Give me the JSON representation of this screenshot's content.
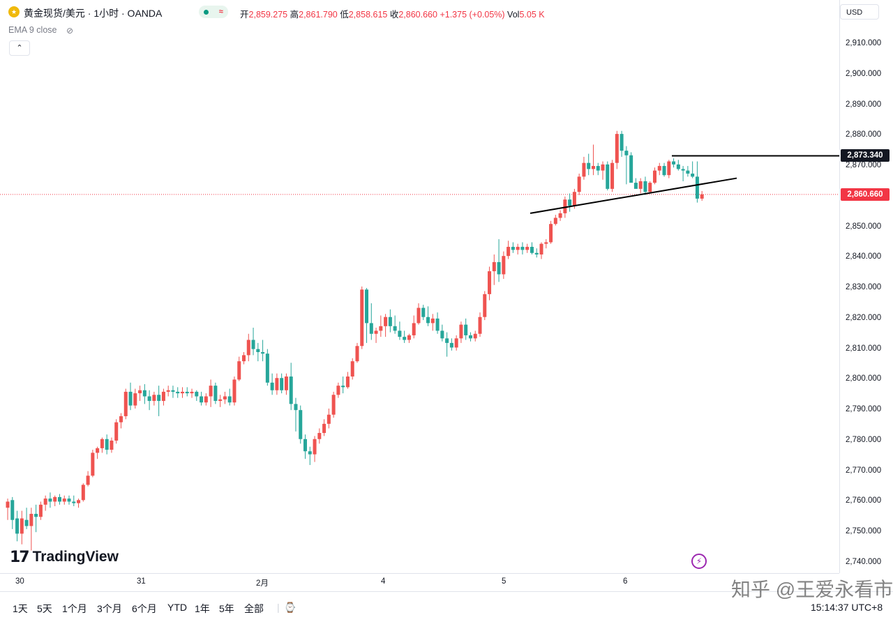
{
  "header": {
    "symbol_icon": "gold-coin-icon",
    "title": "黄金现货/美元 · 1小时 · OANDA",
    "ohlc": {
      "open_label": "开",
      "open": "2,859.275",
      "high_label": "高",
      "high": "2,861.790",
      "low_label": "低",
      "low": "2,858.615",
      "close_label": "收",
      "close": "2,860.660",
      "change": "+1.375 (+0.05%)",
      "vol_label": "Vol",
      "vol": "5.05 K"
    },
    "indicator": "EMA 9 close"
  },
  "price_axis": {
    "currency": "USD",
    "ticks": [
      "2,910.000",
      "2,900.000",
      "2,890.000",
      "2,880.000",
      "2,870.000",
      "2,860.000",
      "2,850.000",
      "2,840.000",
      "2,830.000",
      "2,820.000",
      "2,810.000",
      "2,800.000",
      "2,790.000",
      "2,780.000",
      "2,770.000",
      "2,760.000",
      "2,750.000",
      "2,740.000"
    ],
    "line_tag": "2,873.340",
    "last_price_tag": "2,860.660"
  },
  "time_axis": {
    "labels": [
      "30",
      "31",
      "2月",
      "4",
      "5",
      "6"
    ]
  },
  "ranges": [
    "1天",
    "5天",
    "1个月",
    "3个月",
    "6个月",
    "YTD",
    "1年",
    "5年",
    "全部"
  ],
  "clock": "15:14:37 UTC+8",
  "branding": {
    "logo": "TradingView",
    "watermark": "知乎 @王爱永看市"
  },
  "colors": {
    "up": "#ef5350",
    "down": "#26a69a",
    "last_price": "#f23645"
  },
  "chart_data": {
    "type": "candlestick",
    "timeframe": "1小时",
    "ylim": [
      2738,
      2918
    ],
    "grid": false,
    "candles": [
      {
        "o": 2758.0,
        "h": 2761.0,
        "l": 2754.0,
        "c": 2760.0
      },
      {
        "o": 2760.5,
        "h": 2761.5,
        "l": 2751.0,
        "c": 2754.0
      },
      {
        "o": 2754.5,
        "h": 2757.0,
        "l": 2747.0,
        "c": 2749.5
      },
      {
        "o": 2749.5,
        "h": 2757.0,
        "l": 2746.0,
        "c": 2754.5
      },
      {
        "o": 2754.0,
        "h": 2758.0,
        "l": 2751.0,
        "c": 2752.0
      },
      {
        "o": 2752.0,
        "h": 2758.0,
        "l": 2744.0,
        "c": 2756.0
      },
      {
        "o": 2756.0,
        "h": 2759.0,
        "l": 2750.0,
        "c": 2755.0
      },
      {
        "o": 2755.0,
        "h": 2760.0,
        "l": 2754.0,
        "c": 2759.0
      },
      {
        "o": 2759.0,
        "h": 2762.0,
        "l": 2757.0,
        "c": 2761.0
      },
      {
        "o": 2761.0,
        "h": 2763.0,
        "l": 2758.0,
        "c": 2760.0
      },
      {
        "o": 2760.0,
        "h": 2762.0,
        "l": 2758.5,
        "c": 2761.5
      },
      {
        "o": 2761.5,
        "h": 2762.5,
        "l": 2759.0,
        "c": 2760.0
      },
      {
        "o": 2760.0,
        "h": 2762.0,
        "l": 2759.0,
        "c": 2761.0
      },
      {
        "o": 2761.0,
        "h": 2762.0,
        "l": 2759.0,
        "c": 2760.0
      },
      {
        "o": 2760.0,
        "h": 2762.0,
        "l": 2758.5,
        "c": 2759.5
      },
      {
        "o": 2759.5,
        "h": 2761.0,
        "l": 2758.0,
        "c": 2760.5
      },
      {
        "o": 2760.5,
        "h": 2766.0,
        "l": 2760.0,
        "c": 2765.5
      },
      {
        "o": 2765.5,
        "h": 2770.0,
        "l": 2765.0,
        "c": 2768.5
      },
      {
        "o": 2768.5,
        "h": 2777.0,
        "l": 2768.0,
        "c": 2776.0
      },
      {
        "o": 2776.0,
        "h": 2778.0,
        "l": 2774.0,
        "c": 2777.5
      },
      {
        "o": 2777.5,
        "h": 2781.0,
        "l": 2776.0,
        "c": 2780.5
      },
      {
        "o": 2780.5,
        "h": 2782.0,
        "l": 2775.5,
        "c": 2777.0
      },
      {
        "o": 2777.0,
        "h": 2781.0,
        "l": 2776.0,
        "c": 2780.0
      },
      {
        "o": 2780.0,
        "h": 2787.0,
        "l": 2779.0,
        "c": 2786.0
      },
      {
        "o": 2786.0,
        "h": 2789.0,
        "l": 2784.0,
        "c": 2788.0
      },
      {
        "o": 2788.0,
        "h": 2797.0,
        "l": 2787.0,
        "c": 2796.0
      },
      {
        "o": 2796.0,
        "h": 2799.0,
        "l": 2790.0,
        "c": 2791.5
      },
      {
        "o": 2791.5,
        "h": 2797.0,
        "l": 2790.5,
        "c": 2795.5
      },
      {
        "o": 2795.5,
        "h": 2798.0,
        "l": 2793.0,
        "c": 2796.5
      },
      {
        "o": 2796.5,
        "h": 2798.5,
        "l": 2792.0,
        "c": 2794.5
      },
      {
        "o": 2794.5,
        "h": 2796.5,
        "l": 2790.0,
        "c": 2793.0
      },
      {
        "o": 2793.0,
        "h": 2796.0,
        "l": 2791.5,
        "c": 2795.0
      },
      {
        "o": 2795.0,
        "h": 2798.0,
        "l": 2788.0,
        "c": 2793.0
      },
      {
        "o": 2793.0,
        "h": 2797.0,
        "l": 2791.5,
        "c": 2796.0
      },
      {
        "o": 2796.0,
        "h": 2798.0,
        "l": 2794.5,
        "c": 2796.5
      },
      {
        "o": 2796.5,
        "h": 2798.0,
        "l": 2794.0,
        "c": 2796.0
      },
      {
        "o": 2796.0,
        "h": 2797.5,
        "l": 2794.0,
        "c": 2795.5
      },
      {
        "o": 2795.5,
        "h": 2797.5,
        "l": 2794.0,
        "c": 2796.0
      },
      {
        "o": 2796.0,
        "h": 2797.5,
        "l": 2794.5,
        "c": 2795.5
      },
      {
        "o": 2795.5,
        "h": 2797.0,
        "l": 2794.0,
        "c": 2796.0
      },
      {
        "o": 2796.0,
        "h": 2796.5,
        "l": 2793.0,
        "c": 2794.5
      },
      {
        "o": 2794.5,
        "h": 2796.0,
        "l": 2791.5,
        "c": 2792.5
      },
      {
        "o": 2792.5,
        "h": 2795.5,
        "l": 2791.5,
        "c": 2794.5
      },
      {
        "o": 2794.5,
        "h": 2800.0,
        "l": 2791.0,
        "c": 2798.0
      },
      {
        "o": 2798.0,
        "h": 2799.0,
        "l": 2792.0,
        "c": 2793.0
      },
      {
        "o": 2793.0,
        "h": 2795.0,
        "l": 2791.0,
        "c": 2793.5
      },
      {
        "o": 2793.5,
        "h": 2796.0,
        "l": 2792.0,
        "c": 2794.5
      },
      {
        "o": 2794.5,
        "h": 2797.0,
        "l": 2791.5,
        "c": 2792.5
      },
      {
        "o": 2792.5,
        "h": 2801.0,
        "l": 2791.5,
        "c": 2800.0
      },
      {
        "o": 2800.0,
        "h": 2807.5,
        "l": 2799.5,
        "c": 2806.0
      },
      {
        "o": 2806.0,
        "h": 2809.0,
        "l": 2805.0,
        "c": 2808.0
      },
      {
        "o": 2808.0,
        "h": 2815.0,
        "l": 2806.0,
        "c": 2813.0
      },
      {
        "o": 2813.0,
        "h": 2817.0,
        "l": 2808.0,
        "c": 2810.0
      },
      {
        "o": 2810.0,
        "h": 2812.0,
        "l": 2806.0,
        "c": 2809.0
      },
      {
        "o": 2809.0,
        "h": 2813.0,
        "l": 2806.0,
        "c": 2808.5
      },
      {
        "o": 2808.5,
        "h": 2810.0,
        "l": 2798.0,
        "c": 2799.0
      },
      {
        "o": 2799.0,
        "h": 2802.0,
        "l": 2795.0,
        "c": 2796.5
      },
      {
        "o": 2796.5,
        "h": 2802.0,
        "l": 2795.0,
        "c": 2800.5
      },
      {
        "o": 2800.5,
        "h": 2802.0,
        "l": 2795.5,
        "c": 2796.5
      },
      {
        "o": 2796.5,
        "h": 2802.0,
        "l": 2795.0,
        "c": 2801.0
      },
      {
        "o": 2801.0,
        "h": 2805.5,
        "l": 2790.0,
        "c": 2792.0
      },
      {
        "o": 2792.0,
        "h": 2794.0,
        "l": 2783.0,
        "c": 2790.0
      },
      {
        "o": 2790.0,
        "h": 2791.5,
        "l": 2779.0,
        "c": 2780.5
      },
      {
        "o": 2780.5,
        "h": 2782.0,
        "l": 2774.0,
        "c": 2776.5
      },
      {
        "o": 2776.5,
        "h": 2778.0,
        "l": 2772.0,
        "c": 2775.5
      },
      {
        "o": 2775.5,
        "h": 2781.5,
        "l": 2773.0,
        "c": 2780.5
      },
      {
        "o": 2780.5,
        "h": 2784.0,
        "l": 2779.0,
        "c": 2782.5
      },
      {
        "o": 2782.5,
        "h": 2787.0,
        "l": 2781.5,
        "c": 2785.5
      },
      {
        "o": 2785.5,
        "h": 2790.5,
        "l": 2784.0,
        "c": 2788.5
      },
      {
        "o": 2788.5,
        "h": 2796.0,
        "l": 2787.5,
        "c": 2795.0
      },
      {
        "o": 2795.0,
        "h": 2799.0,
        "l": 2794.0,
        "c": 2798.0
      },
      {
        "o": 2798.0,
        "h": 2801.0,
        "l": 2795.5,
        "c": 2797.5
      },
      {
        "o": 2797.5,
        "h": 2802.5,
        "l": 2797.0,
        "c": 2801.0
      },
      {
        "o": 2801.0,
        "h": 2807.0,
        "l": 2800.0,
        "c": 2806.0
      },
      {
        "o": 2806.0,
        "h": 2812.0,
        "l": 2805.5,
        "c": 2811.0
      },
      {
        "o": 2811.0,
        "h": 2830.5,
        "l": 2810.0,
        "c": 2829.5
      },
      {
        "o": 2829.5,
        "h": 2830.0,
        "l": 2812.0,
        "c": 2818.5
      },
      {
        "o": 2818.5,
        "h": 2825.0,
        "l": 2813.0,
        "c": 2815.0
      },
      {
        "o": 2815.0,
        "h": 2817.0,
        "l": 2812.0,
        "c": 2816.0
      },
      {
        "o": 2816.0,
        "h": 2821.0,
        "l": 2814.0,
        "c": 2817.5
      },
      {
        "o": 2817.5,
        "h": 2821.5,
        "l": 2814.0,
        "c": 2820.5
      },
      {
        "o": 2820.5,
        "h": 2823.0,
        "l": 2815.5,
        "c": 2817.5
      },
      {
        "o": 2817.5,
        "h": 2821.0,
        "l": 2815.0,
        "c": 2816.0
      },
      {
        "o": 2816.0,
        "h": 2819.0,
        "l": 2813.0,
        "c": 2814.0
      },
      {
        "o": 2814.0,
        "h": 2816.0,
        "l": 2812.0,
        "c": 2813.0
      },
      {
        "o": 2813.0,
        "h": 2815.0,
        "l": 2812.0,
        "c": 2814.5
      },
      {
        "o": 2814.5,
        "h": 2821.0,
        "l": 2813.5,
        "c": 2818.5
      },
      {
        "o": 2818.5,
        "h": 2825.0,
        "l": 2818.0,
        "c": 2823.5
      },
      {
        "o": 2823.5,
        "h": 2824.5,
        "l": 2819.5,
        "c": 2820.5
      },
      {
        "o": 2820.5,
        "h": 2824.0,
        "l": 2817.5,
        "c": 2818.5
      },
      {
        "o": 2818.5,
        "h": 2821.5,
        "l": 2816.0,
        "c": 2820.0
      },
      {
        "o": 2820.0,
        "h": 2822.0,
        "l": 2815.0,
        "c": 2816.0
      },
      {
        "o": 2816.0,
        "h": 2818.0,
        "l": 2812.5,
        "c": 2813.5
      },
      {
        "o": 2813.5,
        "h": 2815.5,
        "l": 2807.5,
        "c": 2812.0
      },
      {
        "o": 2812.0,
        "h": 2813.5,
        "l": 2809.5,
        "c": 2810.5
      },
      {
        "o": 2810.5,
        "h": 2814.5,
        "l": 2809.5,
        "c": 2813.5
      },
      {
        "o": 2813.5,
        "h": 2819.0,
        "l": 2812.0,
        "c": 2818.0
      },
      {
        "o": 2818.0,
        "h": 2820.0,
        "l": 2813.0,
        "c": 2814.5
      },
      {
        "o": 2814.5,
        "h": 2815.5,
        "l": 2812.5,
        "c": 2813.5
      },
      {
        "o": 2813.5,
        "h": 2816.0,
        "l": 2812.5,
        "c": 2815.0
      },
      {
        "o": 2815.0,
        "h": 2822.0,
        "l": 2814.0,
        "c": 2820.5
      },
      {
        "o": 2820.5,
        "h": 2829.0,
        "l": 2819.5,
        "c": 2828.0
      },
      {
        "o": 2828.0,
        "h": 2837.0,
        "l": 2826.0,
        "c": 2835.5
      },
      {
        "o": 2835.5,
        "h": 2841.0,
        "l": 2831.0,
        "c": 2838.5
      },
      {
        "o": 2838.5,
        "h": 2846.0,
        "l": 2832.0,
        "c": 2834.5
      },
      {
        "o": 2834.5,
        "h": 2842.0,
        "l": 2833.0,
        "c": 2840.5
      },
      {
        "o": 2840.5,
        "h": 2845.5,
        "l": 2839.5,
        "c": 2843.5
      },
      {
        "o": 2843.5,
        "h": 2845.0,
        "l": 2841.5,
        "c": 2842.5
      },
      {
        "o": 2842.5,
        "h": 2844.5,
        "l": 2841.0,
        "c": 2843.5
      },
      {
        "o": 2843.5,
        "h": 2845.0,
        "l": 2841.0,
        "c": 2842.5
      },
      {
        "o": 2842.5,
        "h": 2844.5,
        "l": 2841.5,
        "c": 2843.5
      },
      {
        "o": 2843.5,
        "h": 2845.0,
        "l": 2841.0,
        "c": 2841.5
      },
      {
        "o": 2841.5,
        "h": 2843.0,
        "l": 2840.0,
        "c": 2841.0
      },
      {
        "o": 2841.0,
        "h": 2845.0,
        "l": 2839.5,
        "c": 2844.5
      },
      {
        "o": 2844.5,
        "h": 2846.0,
        "l": 2843.0,
        "c": 2845.0
      },
      {
        "o": 2845.0,
        "h": 2852.0,
        "l": 2844.5,
        "c": 2851.0
      },
      {
        "o": 2851.0,
        "h": 2854.0,
        "l": 2850.5,
        "c": 2853.0
      },
      {
        "o": 2853.0,
        "h": 2855.5,
        "l": 2852.0,
        "c": 2854.5
      },
      {
        "o": 2854.5,
        "h": 2860.0,
        "l": 2853.0,
        "c": 2859.0
      },
      {
        "o": 2859.0,
        "h": 2861.0,
        "l": 2855.0,
        "c": 2857.0
      },
      {
        "o": 2857.0,
        "h": 2862.5,
        "l": 2856.0,
        "c": 2861.5
      },
      {
        "o": 2861.5,
        "h": 2867.5,
        "l": 2860.5,
        "c": 2866.5
      },
      {
        "o": 2866.5,
        "h": 2873.0,
        "l": 2865.5,
        "c": 2871.0
      },
      {
        "o": 2871.0,
        "h": 2874.0,
        "l": 2867.0,
        "c": 2869.0
      },
      {
        "o": 2869.0,
        "h": 2877.0,
        "l": 2867.0,
        "c": 2870.0
      },
      {
        "o": 2870.0,
        "h": 2871.0,
        "l": 2867.0,
        "c": 2868.5
      },
      {
        "o": 2868.5,
        "h": 2871.5,
        "l": 2865.5,
        "c": 2870.5
      },
      {
        "o": 2870.5,
        "h": 2871.5,
        "l": 2862.0,
        "c": 2862.5
      },
      {
        "o": 2862.5,
        "h": 2872.0,
        "l": 2861.5,
        "c": 2871.0
      },
      {
        "o": 2871.0,
        "h": 2881.5,
        "l": 2869.0,
        "c": 2880.5
      },
      {
        "o": 2880.5,
        "h": 2881.5,
        "l": 2873.0,
        "c": 2875.0
      },
      {
        "o": 2875.0,
        "h": 2876.5,
        "l": 2864.0,
        "c": 2873.5
      },
      {
        "o": 2873.5,
        "h": 2874.5,
        "l": 2866.0,
        "c": 2864.5
      },
      {
        "o": 2864.5,
        "h": 2866.0,
        "l": 2863.0,
        "c": 2862.5
      },
      {
        "o": 2862.5,
        "h": 2866.0,
        "l": 2861.0,
        "c": 2865.0
      },
      {
        "o": 2865.0,
        "h": 2866.5,
        "l": 2860.5,
        "c": 2861.5
      },
      {
        "o": 2861.5,
        "h": 2865.0,
        "l": 2861.0,
        "c": 2864.5
      },
      {
        "o": 2864.5,
        "h": 2869.5,
        "l": 2864.0,
        "c": 2868.5
      },
      {
        "o": 2868.5,
        "h": 2871.0,
        "l": 2867.0,
        "c": 2870.0
      },
      {
        "o": 2870.0,
        "h": 2871.0,
        "l": 2866.5,
        "c": 2867.0
      },
      {
        "o": 2867.0,
        "h": 2872.0,
        "l": 2866.0,
        "c": 2871.5
      },
      {
        "o": 2871.5,
        "h": 2872.5,
        "l": 2869.5,
        "c": 2870.5
      },
      {
        "o": 2870.5,
        "h": 2872.0,
        "l": 2868.5,
        "c": 2869.0
      },
      {
        "o": 2869.0,
        "h": 2870.0,
        "l": 2865.0,
        "c": 2868.5
      },
      {
        "o": 2868.5,
        "h": 2870.0,
        "l": 2866.5,
        "c": 2867.5
      },
      {
        "o": 2867.5,
        "h": 2871.5,
        "l": 2866.0,
        "c": 2866.5
      },
      {
        "o": 2866.5,
        "h": 2871.5,
        "l": 2858.0,
        "c": 2859.3
      },
      {
        "o": 2859.3,
        "h": 2861.8,
        "l": 2858.6,
        "c": 2860.7
      }
    ],
    "annotations": {
      "horizontal_line": 2873.34,
      "trend_line": {
        "from_price": 2854.5,
        "to_price": 2866.0
      }
    },
    "last_price": 2860.66
  }
}
